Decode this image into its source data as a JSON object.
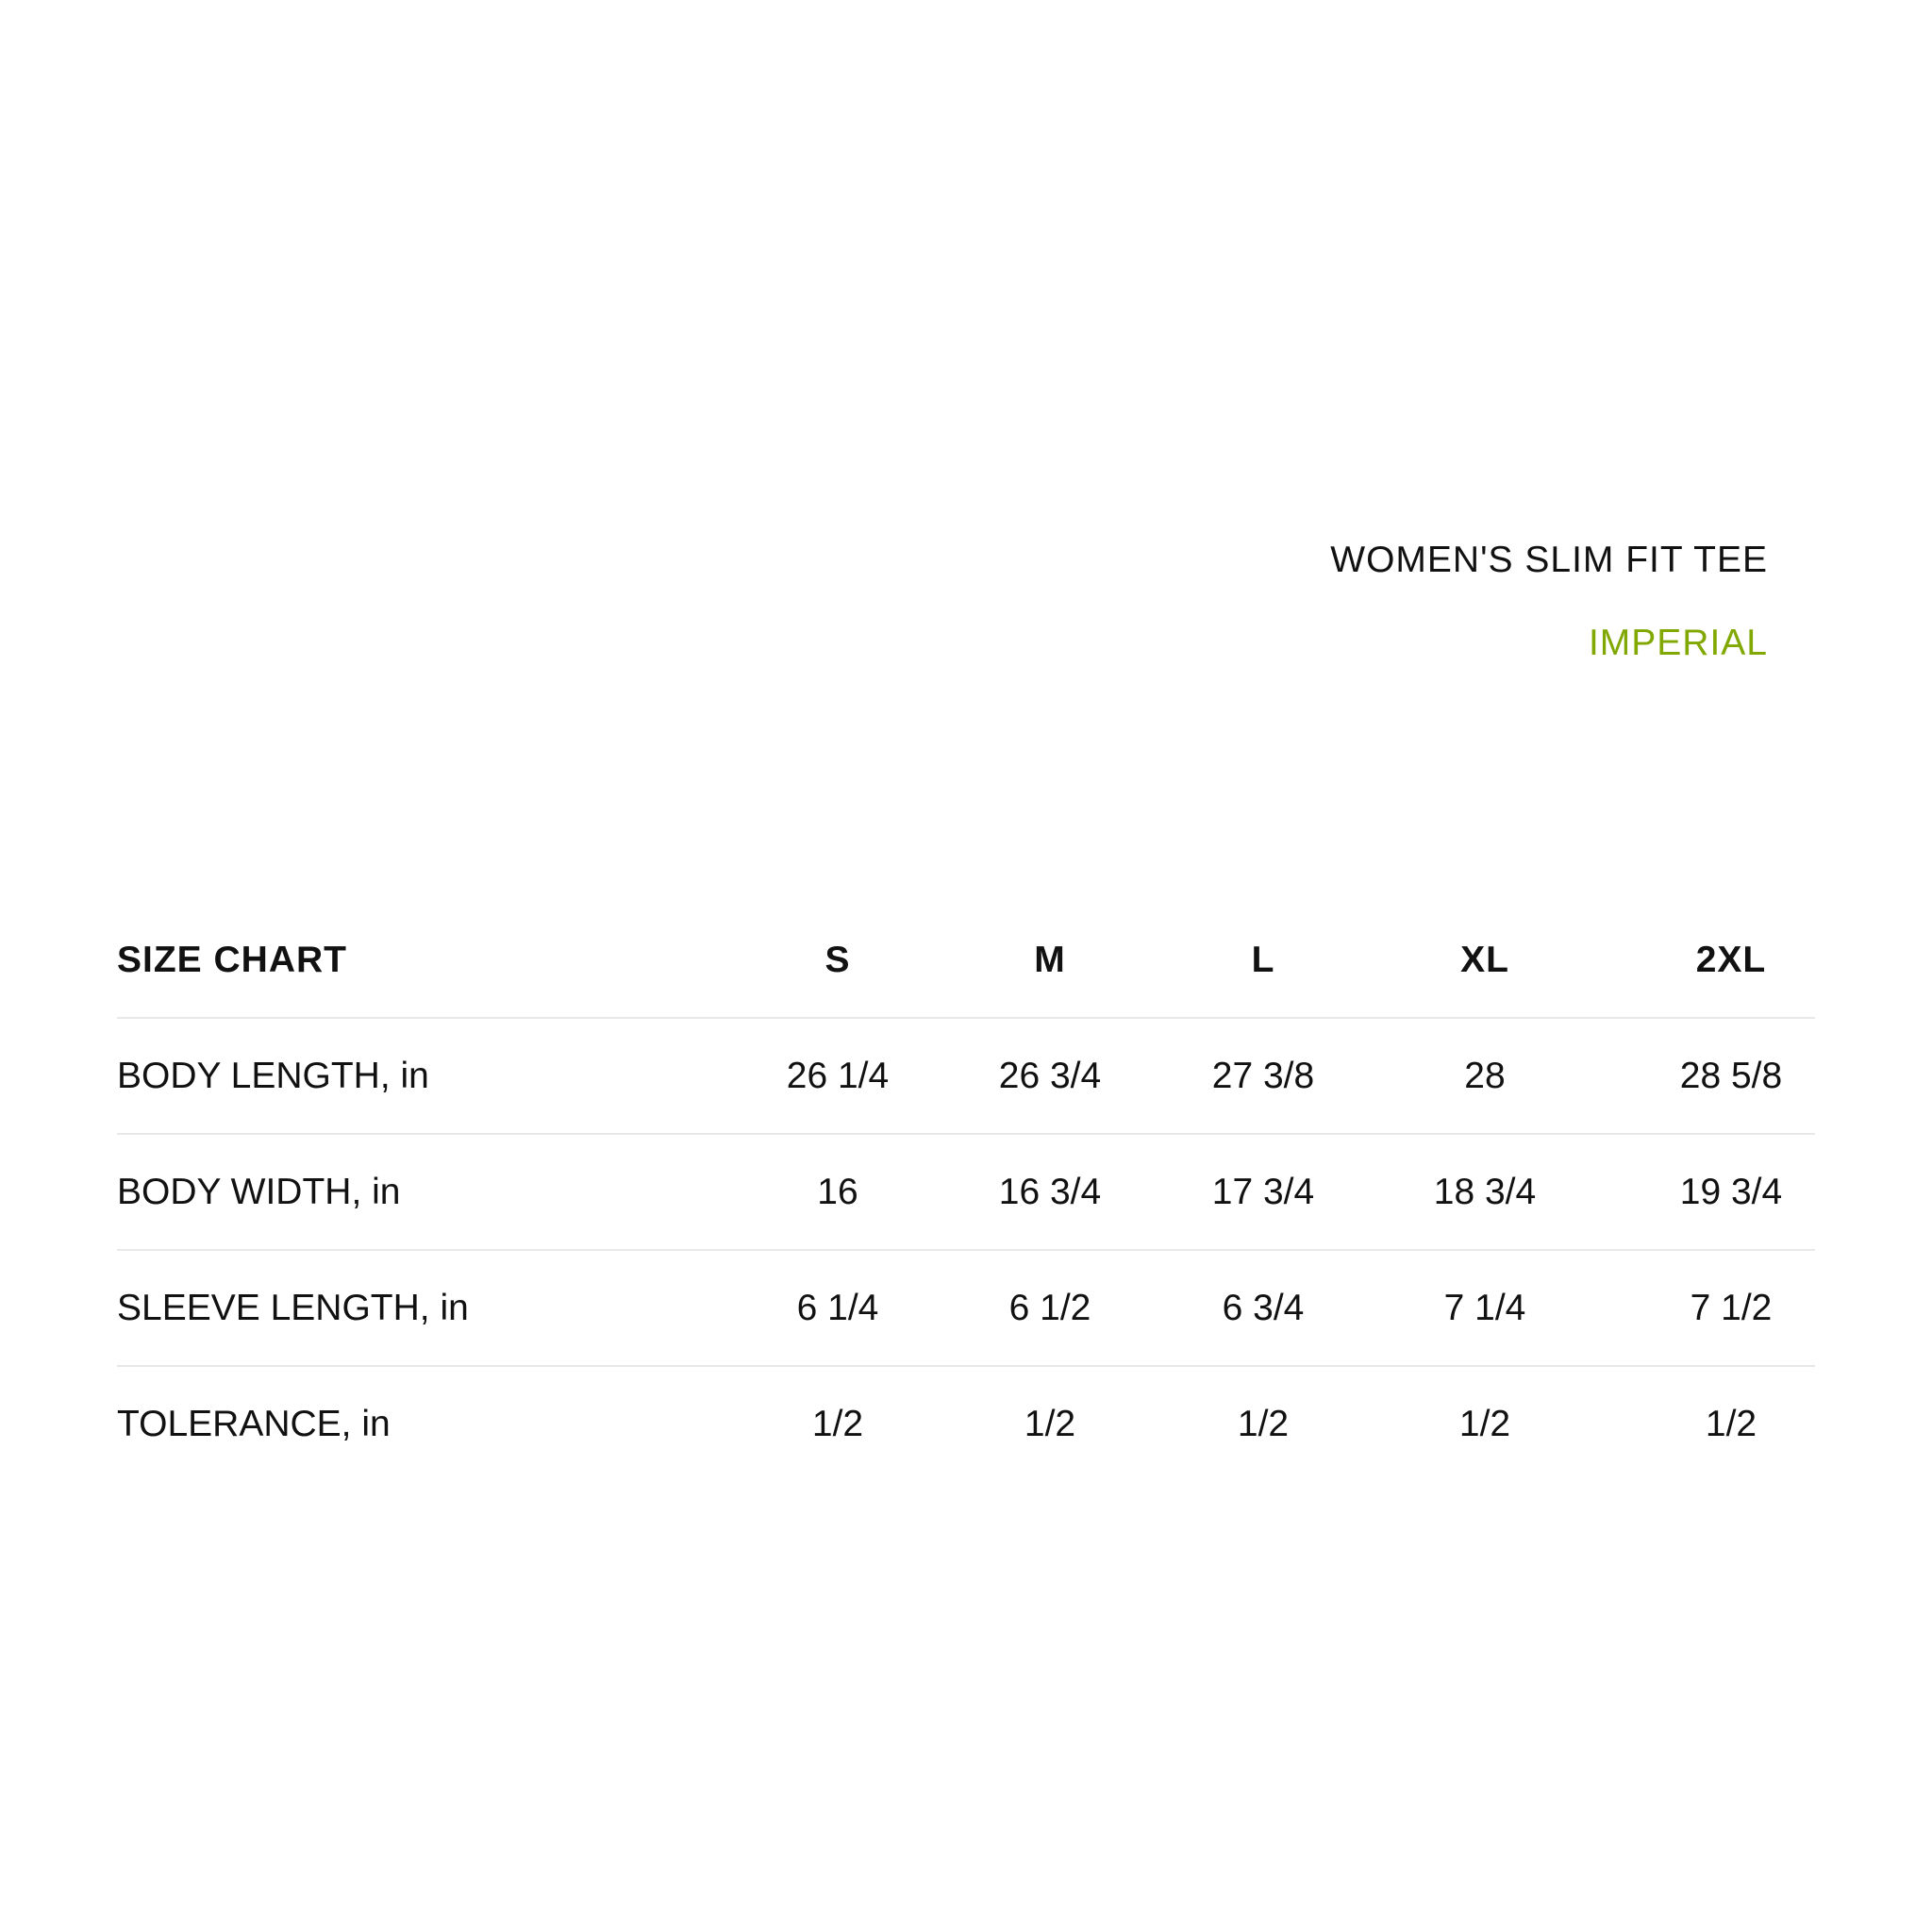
{
  "header": {
    "title": "WOMEN'S SLIM FIT TEE",
    "unit_system": "IMPERIAL",
    "accent_color": "#80a800"
  },
  "table": {
    "heading": "SIZE CHART",
    "sizes": [
      "S",
      "M",
      "L",
      "XL",
      "2XL"
    ],
    "rows": [
      {
        "label": "BODY LENGTH, in",
        "values": [
          "26 1/4",
          "26 3/4",
          "27 3/8",
          "28",
          "28 5/8"
        ]
      },
      {
        "label": "BODY WIDTH, in",
        "values": [
          "16",
          "16 3/4",
          "17 3/4",
          "18 3/4",
          "19 3/4"
        ]
      },
      {
        "label": "SLEEVE LENGTH, in",
        "values": [
          "6 1/4",
          "6 1/2",
          "6 3/4",
          "7 1/4",
          "7 1/2"
        ]
      },
      {
        "label": "TOLERANCE, in",
        "values": [
          "1/2",
          "1/2",
          "1/2",
          "1/2",
          "1/2"
        ]
      }
    ]
  }
}
